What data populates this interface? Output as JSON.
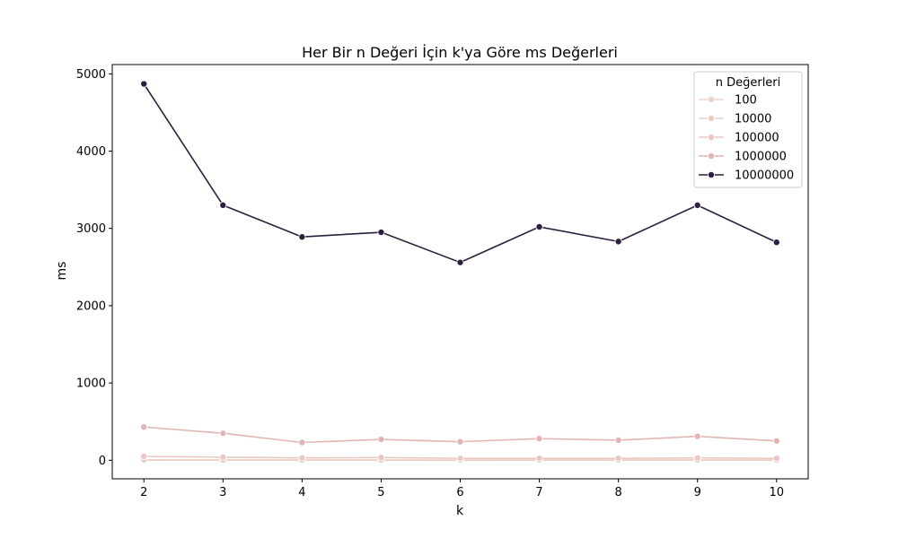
{
  "chart_data": {
    "type": "line",
    "title": "Her Bir n Değeri İçin k'ya Göre ms Değerleri",
    "xlabel": "k",
    "ylabel": "ms",
    "x": [
      2,
      3,
      4,
      5,
      6,
      7,
      8,
      9,
      10
    ],
    "xlim": [
      1.6,
      10.4
    ],
    "ylim": [
      -240,
      5120
    ],
    "xticks": [
      "2",
      "3",
      "4",
      "5",
      "6",
      "7",
      "8",
      "9",
      "10"
    ],
    "yticks": [
      "0",
      "1000",
      "2000",
      "3000",
      "4000",
      "5000"
    ],
    "grid": false,
    "legend": {
      "title": "n Değerleri",
      "position": "top-right"
    },
    "series": [
      {
        "name": "100",
        "color": "#edd1cb",
        "values": [
          1,
          1,
          1,
          1,
          1,
          1,
          1,
          1,
          1
        ]
      },
      {
        "name": "10000",
        "color": "#ebcdc6",
        "values": [
          4,
          3,
          3,
          3,
          2,
          3,
          3,
          3,
          3
        ]
      },
      {
        "name": "100000",
        "color": "#e8c8c0",
        "values": [
          50,
          40,
          30,
          35,
          25,
          25,
          25,
          30,
          25
        ]
      },
      {
        "name": "1000000",
        "color": "#e2b4b4",
        "values": [
          430,
          350,
          230,
          270,
          240,
          280,
          260,
          310,
          250
        ]
      },
      {
        "name": "10000000",
        "color": "#2d1e3e",
        "values": [
          4870,
          3300,
          2890,
          2950,
          2560,
          3020,
          2830,
          3300,
          2820
        ]
      }
    ]
  }
}
